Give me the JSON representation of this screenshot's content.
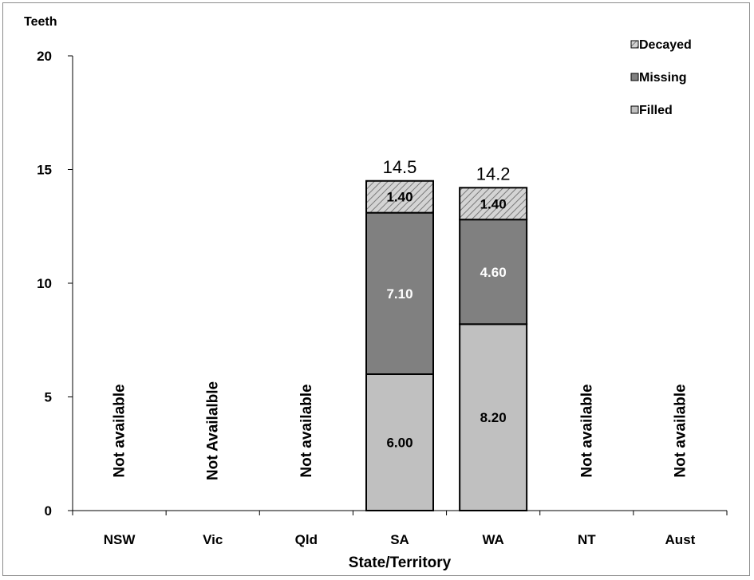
{
  "chart_data": {
    "type": "bar",
    "stacked": true,
    "title": "",
    "ylabel": "Teeth",
    "xlabel": "State/Territory",
    "ylim": [
      0,
      20
    ],
    "yticks": [
      0,
      5,
      10,
      15,
      20
    ],
    "categories": [
      "NSW",
      "Vic",
      "Qld",
      "SA",
      "WA",
      "NT",
      "Aust"
    ],
    "series": [
      {
        "name": "Filled",
        "color": "#c0c0c0",
        "label_color": "#000000",
        "pattern": "solid",
        "values": [
          null,
          null,
          null,
          6.0,
          8.2,
          null,
          null
        ],
        "labels": [
          "",
          "",
          "",
          "6.00",
          "8.20",
          "",
          ""
        ]
      },
      {
        "name": "Missing",
        "color": "#808080",
        "label_color": "#ffffff",
        "pattern": "solid",
        "values": [
          null,
          null,
          null,
          7.1,
          4.6,
          null,
          null
        ],
        "labels": [
          "",
          "",
          "",
          "7.10",
          "4.60",
          "",
          ""
        ]
      },
      {
        "name": "Decayed",
        "color": "#c0c0c0",
        "label_color": "#000000",
        "pattern": "hatch",
        "values": [
          null,
          null,
          null,
          1.4,
          1.4,
          null,
          null
        ],
        "labels": [
          "",
          "",
          "",
          "1.40",
          "1.40",
          "",
          ""
        ]
      }
    ],
    "totals": [
      "",
      "",
      "",
      "14.5",
      "14.2",
      "",
      ""
    ],
    "unavailable_labels": [
      "Not available",
      "Not Availalble",
      "Not available",
      "",
      "",
      "Not available",
      "Not available"
    ],
    "legend": {
      "position": "top-right",
      "entries": [
        "Decayed",
        "Missing",
        "Filled"
      ]
    },
    "grid": false
  }
}
